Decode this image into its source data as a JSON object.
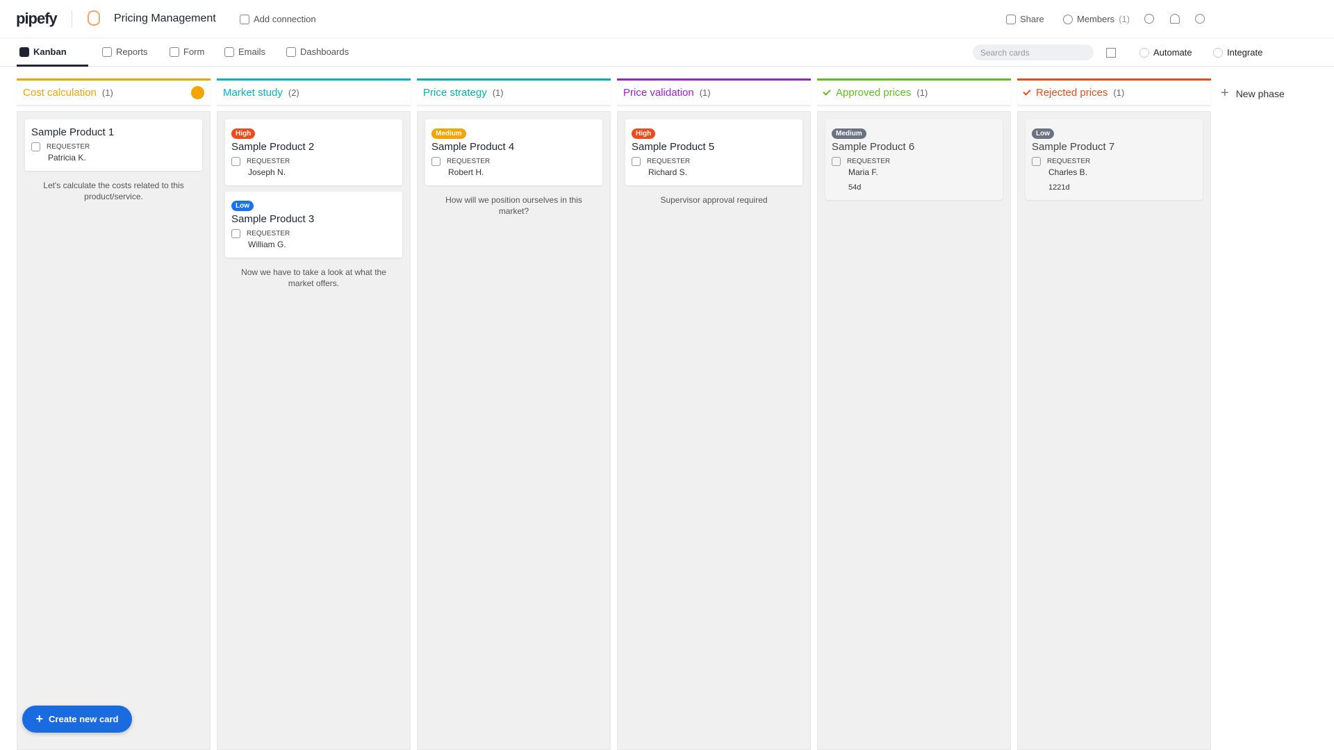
{
  "header": {
    "logo": "pipefy",
    "title": "Pricing Management",
    "add_connection": "Add connection",
    "share": "Share",
    "members": "Members",
    "members_count": "(1)"
  },
  "tabs": {
    "items": [
      "Kanban",
      "Reports",
      "Form",
      "Emails",
      "Dashboards"
    ],
    "search_placeholder": "Search cards",
    "automate": "Automate",
    "integrate": "Integrate"
  },
  "phases": [
    {
      "name": "Cost calculation",
      "count": "(1)",
      "color": "#f5a300",
      "done": false,
      "cards": [
        {
          "title": "Sample Product 1",
          "field_label": "REQUESTER",
          "field_value": "Patricia K."
        }
      ],
      "description": "Let's calculate the costs related to this product/service."
    },
    {
      "name": "Market study",
      "count": "(2)",
      "color": "#00b5c8",
      "done": false,
      "cards": [
        {
          "tag": "High",
          "tag_color": "#f04a1a",
          "title": "Sample Product 2",
          "field_label": "REQUESTER",
          "field_value": "Joseph N."
        },
        {
          "tag": "Low",
          "tag_color": "#1a73e8",
          "title": "Sample Product 3",
          "field_label": "REQUESTER",
          "field_value": "William G."
        }
      ],
      "description": "Now we have to take a look at what the market offers."
    },
    {
      "name": "Price strategy",
      "count": "(1)",
      "color": "#00b5a8",
      "done": false,
      "cards": [
        {
          "tag": "Medium",
          "tag_color": "#f5a300",
          "title": "Sample Product 4",
          "field_label": "REQUESTER",
          "field_value": "Robert H."
        }
      ],
      "description": "How will we position ourselves in this market?"
    },
    {
      "name": "Price validation",
      "count": "(1)",
      "color": "#a020d0",
      "done": false,
      "cards": [
        {
          "tag": "High",
          "tag_color": "#f04a1a",
          "title": "Sample Product 5",
          "field_label": "REQUESTER",
          "field_value": "Richard S."
        }
      ],
      "description": "Supervisor approval required"
    },
    {
      "name": "Approved prices",
      "count": "(1)",
      "color": "#5ec21c",
      "done": true,
      "cards": [
        {
          "tag": "Medium",
          "tag_color": "#6b7280",
          "title": "Sample Product 6",
          "field_label": "REQUESTER",
          "field_value": "Maria F.",
          "due": "54d"
        }
      ]
    },
    {
      "name": "Rejected prices",
      "count": "(1)",
      "color": "#f04a1a",
      "done": true,
      "cards": [
        {
          "tag": "Low",
          "tag_color": "#6b7280",
          "title": "Sample Product 7",
          "field_label": "REQUESTER",
          "field_value": "Charles B.",
          "due": "1221d"
        }
      ]
    }
  ],
  "new_phase": "New phase",
  "create_card": "Create new card"
}
